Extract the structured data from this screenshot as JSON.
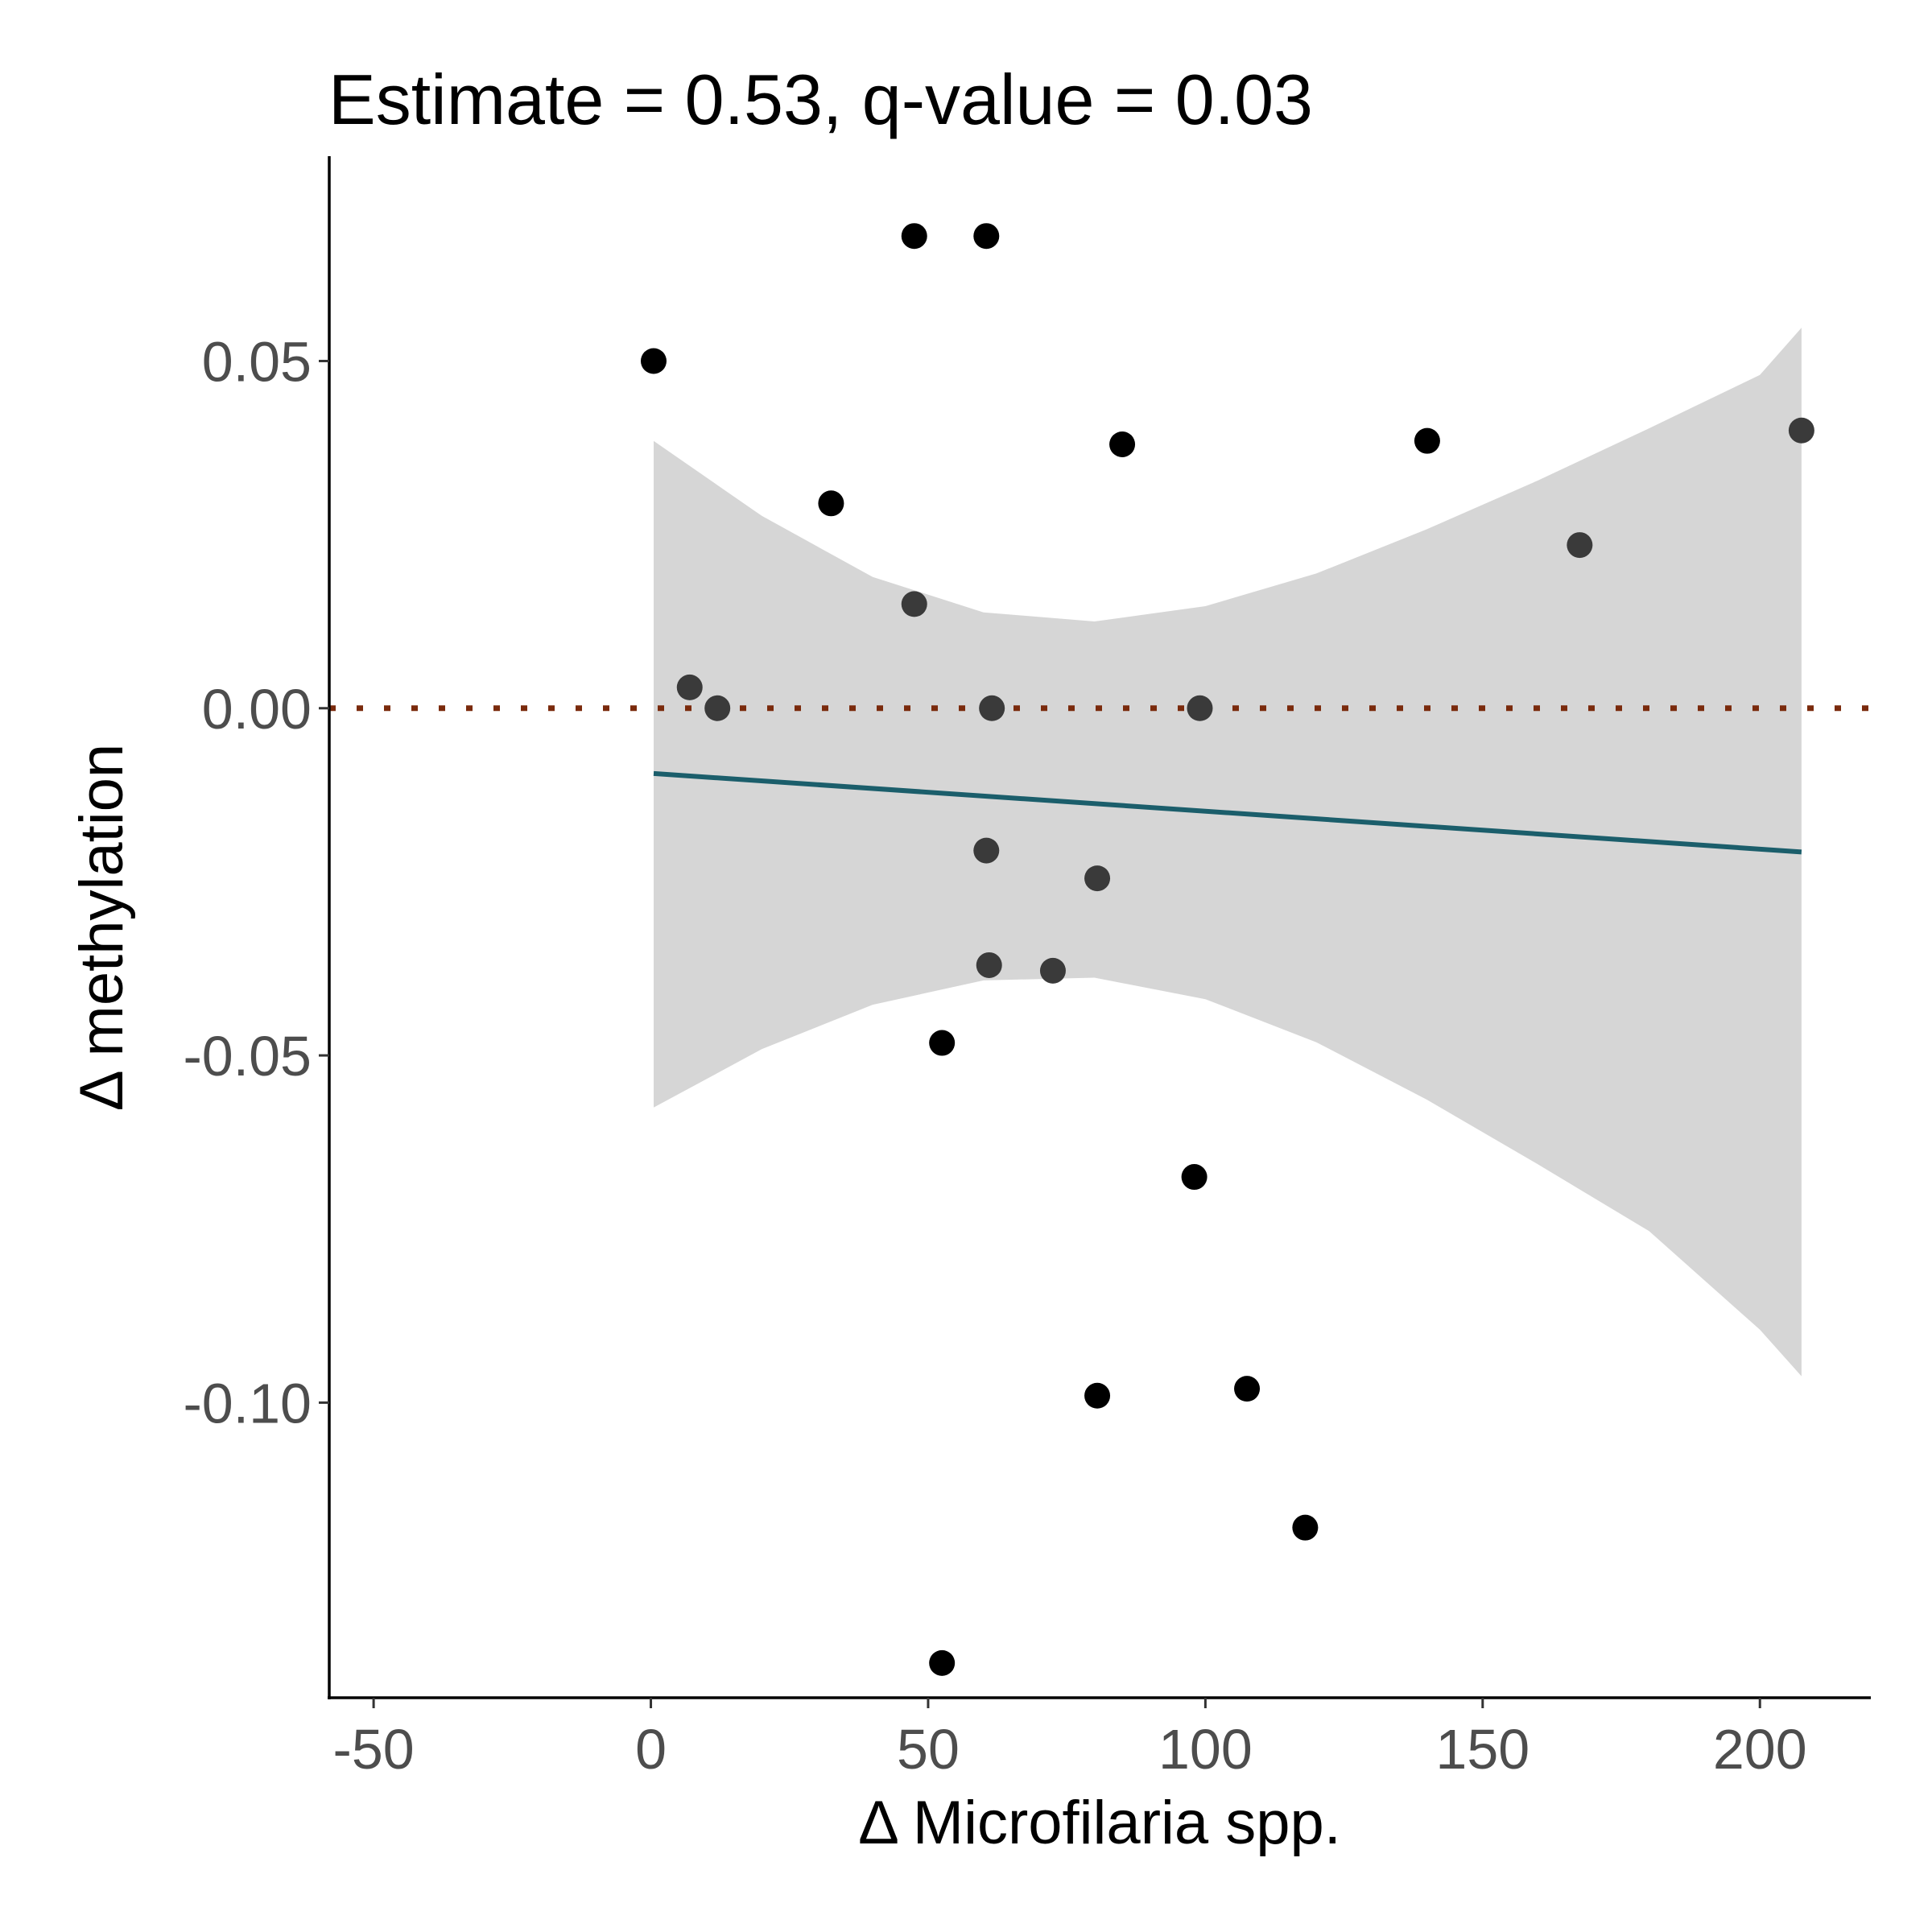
{
  "chart_data": {
    "type": "scatter",
    "title": "Estimate = 0.53, q-value = 0.03",
    "xlabel": "Δ Microfilaria spp.",
    "ylabel": "Δ methylation",
    "xlim": [
      -58,
      220
    ],
    "ylim": [
      -0.1425,
      0.0795
    ],
    "x_ticks": [
      -50,
      0,
      50,
      100,
      150,
      200
    ],
    "x_tick_labels": [
      "-50",
      "0",
      "50",
      "100",
      "150",
      "200"
    ],
    "y_ticks": [
      0.05,
      0.0,
      -0.05,
      -0.1
    ],
    "y_tick_labels": [
      "0.05",
      "0.00",
      "-0.05",
      "-0.10"
    ],
    "grid": false,
    "legend": "none",
    "colors": {
      "point_outside": "#000000",
      "point_inside": "#3a3a3a",
      "ribbon": "#d6d6d6",
      "fit_line": "#1b5e6b",
      "reference_line": "#7a2a0c",
      "axis": "#000000"
    },
    "reference_line": {
      "y": 0.0,
      "style": "dotted"
    },
    "fit_line": {
      "x": [
        0.5,
        207.5
      ],
      "y": [
        -0.0094,
        -0.0207
      ]
    },
    "confidence_band": {
      "x": [
        0.5,
        20,
        40,
        60,
        80,
        100,
        120,
        140,
        160,
        180,
        200,
        207.5
      ],
      "upper": [
        0.0385,
        0.0277,
        0.0189,
        0.0138,
        0.0125,
        0.0147,
        0.0194,
        0.0258,
        0.0328,
        0.0403,
        0.048,
        0.0548
      ],
      "lower": [
        -0.0575,
        -0.0491,
        -0.0427,
        -0.0392,
        -0.0388,
        -0.0419,
        -0.0481,
        -0.0564,
        -0.0657,
        -0.0753,
        -0.0895,
        -0.0962
      ]
    },
    "points": [
      {
        "x": 0.5,
        "y": 0.05
      },
      {
        "x": 47.5,
        "y": 0.068
      },
      {
        "x": 60.5,
        "y": 0.068
      },
      {
        "x": 32.5,
        "y": 0.0295
      },
      {
        "x": 85.0,
        "y": 0.038
      },
      {
        "x": 140.0,
        "y": 0.0385
      },
      {
        "x": 207.5,
        "y": 0.04
      },
      {
        "x": 167.5,
        "y": 0.0235
      },
      {
        "x": 47.5,
        "y": 0.015
      },
      {
        "x": 7.0,
        "y": 0.003
      },
      {
        "x": 12.0,
        "y": 0.0
      },
      {
        "x": 61.5,
        "y": 0.0
      },
      {
        "x": 99.0,
        "y": 0.0
      },
      {
        "x": 60.5,
        "y": -0.0205
      },
      {
        "x": 80.5,
        "y": -0.0245
      },
      {
        "x": 61.0,
        "y": -0.037
      },
      {
        "x": 72.5,
        "y": -0.0378
      },
      {
        "x": 52.5,
        "y": -0.0482
      },
      {
        "x": 98.0,
        "y": -0.0675
      },
      {
        "x": 80.5,
        "y": -0.099
      },
      {
        "x": 107.5,
        "y": -0.098
      },
      {
        "x": 118.0,
        "y": -0.118
      },
      {
        "x": 52.5,
        "y": -0.1375
      }
    ]
  }
}
